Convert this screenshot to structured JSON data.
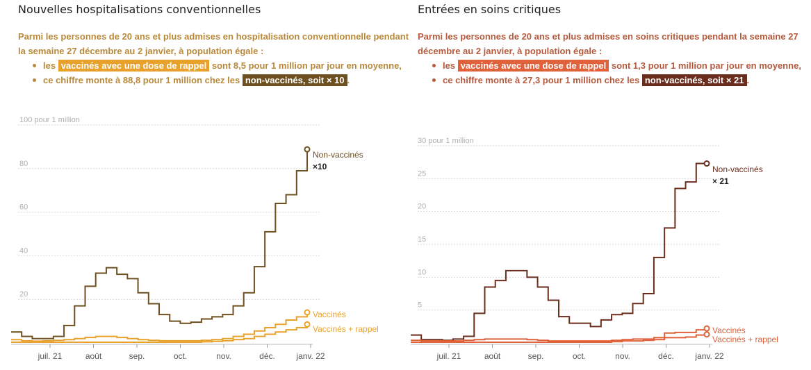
{
  "panels": [
    {
      "title": "Nouvelles hospitalisations conventionnelles",
      "text_color": "#b8893a",
      "intro": "Parmi les personnes de 20 ans et plus admises en hospitalisation conventionnelle pendant la semaine 27 décembre au 2 janvier, à population égale :",
      "bullet1_pre": "les ",
      "bullet1_hl": "vaccinés avec une dose de rappel",
      "bullet1_post": " sont 8,5 pour 1 million par jour en moyenne,",
      "bullet2_pre": "ce chiffre monte à 88,8 pour 1 million chez les ",
      "bullet2_hl": "non-vaccinés, soit × 10",
      "bullet2_post": ".",
      "hl1_color": "#e8a22c",
      "hl2_color": "#6e4f1f"
    },
    {
      "title": "Entrées en soins critiques",
      "text_color": "#b55a3d",
      "intro": "Parmi les personnes de 20 ans et plus admises en soins critiques pendant la semaine 27 décembre au 2 janvier, à population égale :",
      "bullet1_pre": "les ",
      "bullet1_hl": "vaccinés avec une dose de rappel",
      "bullet1_post": " sont 1,3 pour 1 million par jour en moyenne,",
      "bullet2_pre": "ce chiffre monte à 27,3 pour 1 million chez les ",
      "bullet2_hl": "non-vaccinés, soit × 21",
      "bullet2_post": ".",
      "hl1_color": "#e0613a",
      "hl2_color": "#6b2e1e"
    }
  ],
  "chart_data": [
    {
      "type": "line",
      "step": true,
      "ylim": [
        0,
        100
      ],
      "yticks": [
        20,
        40,
        60,
        80
      ],
      "y_top_label": "100 pour 1 million",
      "xlim": [
        0,
        28
      ],
      "xticks": [
        {
          "x": 2.5,
          "label": "juil. 21"
        },
        {
          "x": 7,
          "label": "août"
        },
        {
          "x": 11.5,
          "label": "sep."
        },
        {
          "x": 16,
          "label": "oct."
        },
        {
          "x": 20.5,
          "label": "nov."
        },
        {
          "x": 25,
          "label": "déc."
        },
        {
          "x": 29.5,
          "label": "janv. 22"
        }
      ],
      "grid": true,
      "series": [
        {
          "name": "Non-vaccinés",
          "multiplier": "×10",
          "color": "#6e4f1f",
          "values": [
            5,
            3,
            2,
            2,
            3,
            8,
            17,
            26,
            32,
            34.5,
            31.5,
            29.5,
            23,
            18,
            13,
            10,
            9,
            9.5,
            11,
            12,
            13,
            17,
            23,
            35,
            51,
            64,
            68,
            79,
            88.8
          ]
        },
        {
          "name": "Vaccinés",
          "color": "#e8a22c",
          "values": [
            1.5,
            1,
            0.8,
            1,
            1.2,
            1.5,
            2,
            2.5,
            3,
            3,
            2.5,
            2,
            1.5,
            1.2,
            1,
            1,
            1,
            1,
            1.2,
            1.5,
            2,
            3,
            4,
            5.5,
            7,
            8.5,
            10.5,
            12,
            14
          ]
        },
        {
          "name": "Vaccinés + rappel",
          "color": "#e8a22c",
          "values": [
            0.3,
            0.3,
            0.3,
            0.3,
            0.3,
            0.3,
            0.3,
            0.3,
            0.3,
            0.3,
            0.3,
            0.3,
            0.3,
            0.3,
            0.3,
            0.3,
            0.3,
            0.3,
            0.5,
            0.7,
            1,
            1.5,
            2,
            3,
            4,
            5,
            6,
            7,
            8.5
          ]
        }
      ]
    },
    {
      "type": "line",
      "step": true,
      "ylim": [
        0,
        30
      ],
      "yticks": [
        5,
        10,
        15,
        20,
        25
      ],
      "y_top_label": "30 pour 1 million",
      "xlim": [
        0,
        28
      ],
      "xticks": [
        {
          "x": 2.5,
          "label": "juil. 21"
        },
        {
          "x": 7,
          "label": "août"
        },
        {
          "x": 11.5,
          "label": "sep."
        },
        {
          "x": 16,
          "label": "oct."
        },
        {
          "x": 20.5,
          "label": "nov."
        },
        {
          "x": 25,
          "label": "déc."
        },
        {
          "x": 29.5,
          "label": "janv. 22"
        }
      ],
      "grid": true,
      "series": [
        {
          "name": "Non-vaccinés",
          "multiplier": "× 21",
          "color": "#6b2e1e",
          "values": [
            1.2,
            0.5,
            0.5,
            0.4,
            0.6,
            1,
            4.5,
            8.5,
            9.5,
            11,
            11,
            10,
            8.5,
            6.5,
            4,
            3,
            3,
            2.5,
            3.5,
            4.3,
            4.5,
            6,
            7.5,
            13,
            17.5,
            23.5,
            24.5,
            27.3,
            27.3
          ]
        },
        {
          "name": "Vaccinés",
          "color": "#e0613a",
          "values": [
            0.4,
            0.3,
            0.3,
            0.3,
            0.3,
            0.4,
            0.5,
            0.6,
            0.6,
            0.6,
            0.6,
            0.5,
            0.4,
            0.3,
            0.3,
            0.3,
            0.3,
            0.3,
            0.3,
            0.4,
            0.5,
            0.6,
            0.6,
            0.8,
            1.5,
            1.6,
            1.6,
            2,
            2.2
          ]
        },
        {
          "name": "Vaccinés + rappel",
          "color": "#e0613a",
          "values": [
            0.1,
            0.1,
            0.1,
            0.1,
            0.1,
            0.1,
            0.1,
            0.1,
            0.1,
            0.1,
            0.1,
            0.1,
            0.1,
            0.1,
            0.1,
            0.1,
            0.1,
            0.1,
            0.1,
            0.2,
            0.3,
            0.3,
            0.4,
            0.5,
            0.8,
            0.8,
            0.9,
            1.2,
            1.3
          ]
        }
      ]
    }
  ]
}
